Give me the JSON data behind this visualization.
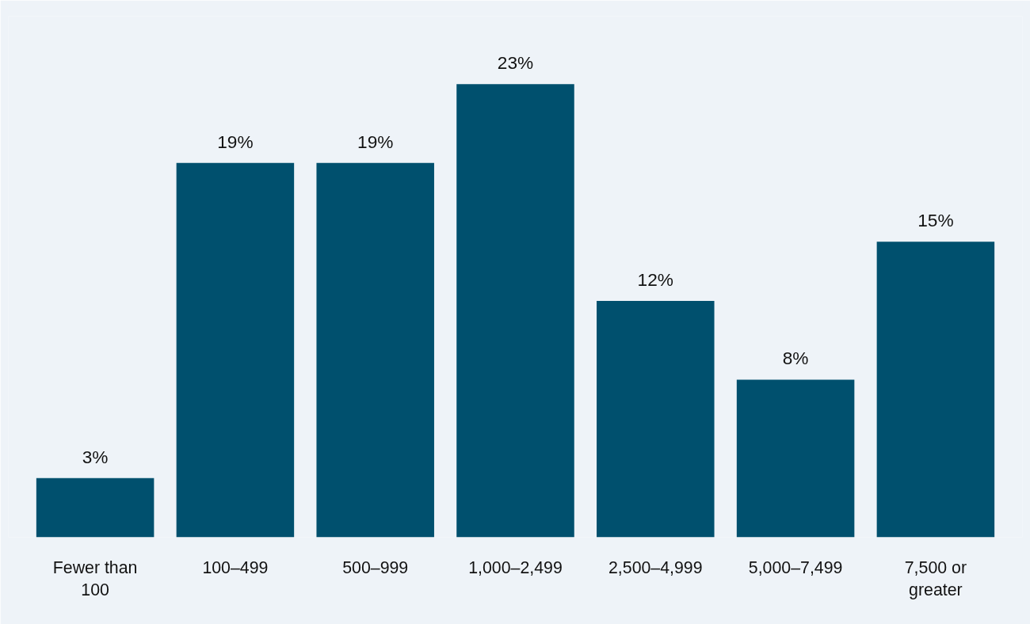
{
  "chart_data": {
    "type": "bar",
    "categories": [
      "Fewer than 100",
      "100–499",
      "500–999",
      "1,000–2,499",
      "2,500–4,999",
      "5,000–7,499",
      "7,500 or greater"
    ],
    "values": [
      3,
      19,
      19,
      23,
      12,
      8,
      15
    ],
    "color": "#00506e",
    "data_labels": true,
    "value_labels": [
      "3%",
      "19%",
      "19%",
      "23%",
      "12%",
      "8%",
      "15%"
    ]
  }
}
